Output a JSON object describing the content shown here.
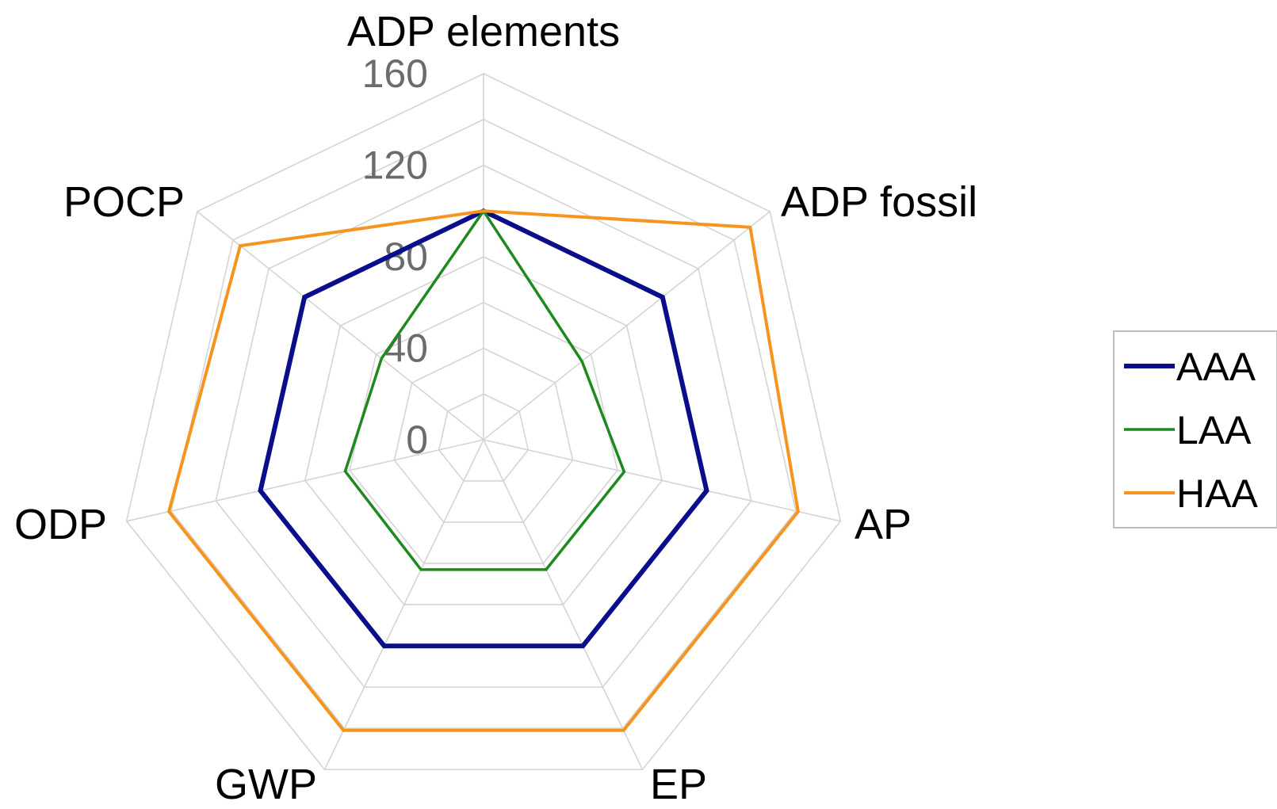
{
  "chart_data": {
    "type": "radar",
    "axes": [
      "ADP elements",
      "ADP fossil",
      "AP",
      "EP",
      "GWP",
      "ODP",
      "POCP"
    ],
    "r_ticks": [
      "0",
      "40",
      "80",
      "120",
      "160"
    ],
    "r_range": [
      0,
      160
    ],
    "grid": true,
    "legend_position": "right",
    "series": [
      {
        "name": "AAA",
        "color": "#0b0e8a",
        "values": [
          100,
          100,
          100,
          100,
          100,
          100,
          100
        ]
      },
      {
        "name": "LAA",
        "color": "#1e8a1e",
        "values": [
          100,
          55,
          63,
          63,
          63,
          62,
          57
        ]
      },
      {
        "name": "HAA",
        "color": "#f7941d",
        "values": [
          100,
          149,
          141,
          141,
          141,
          141,
          136
        ]
      }
    ]
  }
}
